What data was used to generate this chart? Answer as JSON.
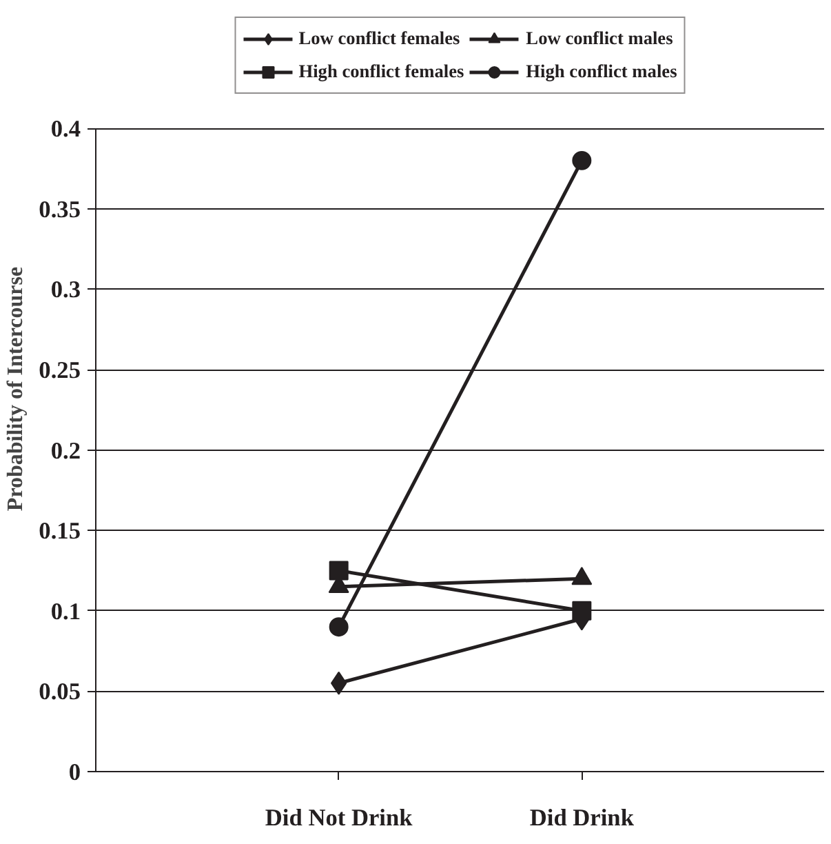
{
  "chart_data": {
    "type": "line",
    "ylabel": "Probability of Intercourse",
    "categories": [
      "Did Not Drink",
      "Did Drink"
    ],
    "series": [
      {
        "name": "Low conflict females",
        "color": "#231f20",
        "marker": "diamond",
        "values": [
          0.055,
          0.095
        ]
      },
      {
        "name": "Low conflict males",
        "color": "#231f20",
        "marker": "triangle",
        "values": [
          0.115,
          0.12
        ]
      },
      {
        "name": "High conflict females",
        "color": "#231f20",
        "marker": "square",
        "values": [
          0.125,
          0.1
        ]
      },
      {
        "name": "High conflict males",
        "color": "#231f20",
        "marker": "circle",
        "values": [
          0.09,
          0.38
        ]
      }
    ],
    "ylim": [
      0,
      0.4
    ],
    "yticks": [
      0,
      0.05,
      0.1,
      0.15,
      0.2,
      0.25,
      0.3,
      0.35,
      0.4
    ],
    "grid": "y",
    "legend": "top",
    "line_style": "solid"
  }
}
